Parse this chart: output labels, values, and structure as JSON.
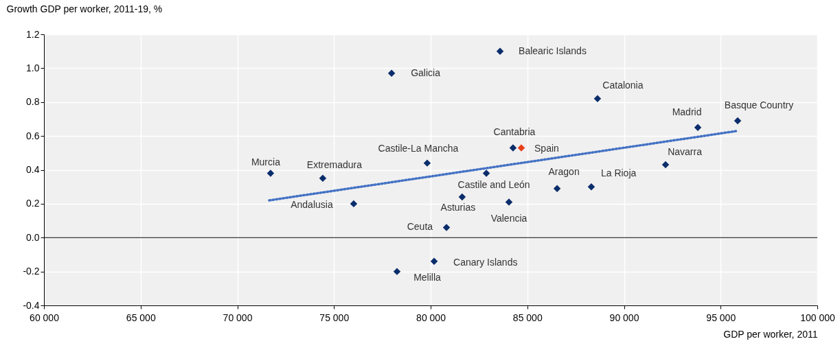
{
  "chart_data": {
    "type": "scatter",
    "xlabel": "GDP per worker, 2011",
    "ylabel": "Growth GDP per worker, 2011-19, %",
    "xlim": [
      60000,
      100000
    ],
    "xticks": [
      {
        "value": 60000,
        "label": "60 000"
      },
      {
        "value": 65000,
        "label": "65 000"
      },
      {
        "value": 70000,
        "label": "70 000"
      },
      {
        "value": 75000,
        "label": "75 000"
      },
      {
        "value": 80000,
        "label": "80 000"
      },
      {
        "value": 85000,
        "label": "85 000"
      },
      {
        "value": 90000,
        "label": "90 000"
      },
      {
        "value": 95000,
        "label": "95 000"
      },
      {
        "value": 100000,
        "label": "100 000"
      }
    ],
    "ylim": [
      -0.4,
      1.2
    ],
    "yticks": [
      {
        "value": -0.4,
        "label": "-0.4"
      },
      {
        "value": -0.2,
        "label": "-0.2"
      },
      {
        "value": 0,
        "label": "0.0"
      },
      {
        "value": 0.2,
        "label": "0.2"
      },
      {
        "value": 0.4,
        "label": "0.4"
      },
      {
        "value": 0.6,
        "label": "0.6"
      },
      {
        "value": 0.8,
        "label": "0.8"
      },
      {
        "value": 1.0,
        "label": "1.0"
      },
      {
        "value": 1.2,
        "label": "1.2"
      }
    ],
    "grid": true,
    "marker": "diamond",
    "ref_lines": [
      {
        "axis": "y",
        "value": 0,
        "color": "#000000"
      }
    ],
    "series": [
      {
        "type": "scatter",
        "color": "#0b2d6b",
        "x": [
          83590,
          77980,
          88630,
          93820,
          95880,
          84260,
          79820,
          92150,
          71720,
          74420,
          82880,
          86540,
          88310,
          76020,
          81630,
          84050,
          80820,
          80180,
          78260
        ],
        "values": [
          1.1,
          0.97,
          0.82,
          0.65,
          0.69,
          0.53,
          0.44,
          0.43,
          0.38,
          0.35,
          0.38,
          0.29,
          0.3,
          0.2,
          0.24,
          0.21,
          0.06,
          -0.14,
          -0.2
        ]
      },
      {
        "type": "scatter",
        "color": "#e8401c",
        "x": [
          84690
        ],
        "values": [
          0.53
        ]
      },
      {
        "type": "line",
        "color": "#4472c4",
        "line_style": "dotted",
        "marker": "none",
        "x": [
          71650,
          95880
        ],
        "values": [
          0.22,
          0.63
        ]
      }
    ],
    "annotations": [
      {
        "text": "Balearic Islands",
        "x": 83590,
        "y": 1.1
      },
      {
        "text": "Galicia",
        "x": 77980,
        "y": 0.97
      },
      {
        "text": "Catalonia",
        "x": 88630,
        "y": 0.82
      },
      {
        "text": "Madrid",
        "x": 93820,
        "y": 0.65
      },
      {
        "text": "Basque Country",
        "x": 95880,
        "y": 0.69
      },
      {
        "text": "Cantabria",
        "x": 84260,
        "y": 0.53
      },
      {
        "text": "Spain",
        "x": 84690,
        "y": 0.53
      },
      {
        "text": "Castile-La Mancha",
        "x": 79820,
        "y": 0.44
      },
      {
        "text": "Navarra",
        "x": 92150,
        "y": 0.43
      },
      {
        "text": "Murcia",
        "x": 71720,
        "y": 0.38
      },
      {
        "text": "Extremadura",
        "x": 74420,
        "y": 0.35
      },
      {
        "text": "Castile and León",
        "x": 82880,
        "y": 0.38
      },
      {
        "text": "Aragon",
        "x": 86540,
        "y": 0.29
      },
      {
        "text": "La Rioja",
        "x": 88310,
        "y": 0.3
      },
      {
        "text": "Andalusia",
        "x": 76020,
        "y": 0.2
      },
      {
        "text": "Asturias",
        "x": 81630,
        "y": 0.24
      },
      {
        "text": "Valencia",
        "x": 84050,
        "y": 0.21
      },
      {
        "text": "Ceuta",
        "x": 80820,
        "y": 0.06
      },
      {
        "text": "Canary Islands",
        "x": 80180,
        "y": -0.14
      },
      {
        "text": "Melilla",
        "x": 78260,
        "y": -0.2
      }
    ]
  }
}
